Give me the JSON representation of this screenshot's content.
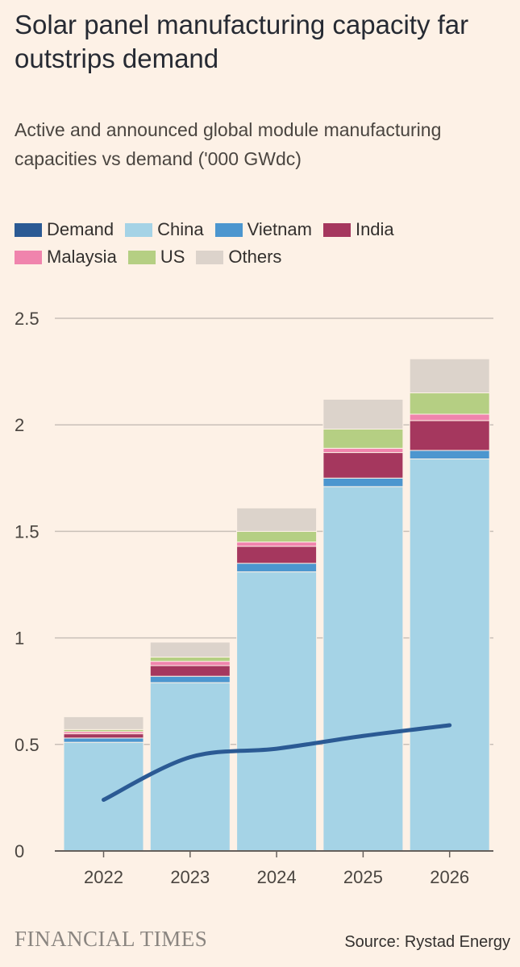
{
  "title": "Solar panel manufacturing capacity far outstrips demand",
  "subtitle": "Active and announced global module manufacturing capacities vs demand ('000 GWdc)",
  "legend": [
    {
      "name": "Demand",
      "color": "#2b5a94"
    },
    {
      "name": "China",
      "color": "#a5d3e6"
    },
    {
      "name": "Vietnam",
      "color": "#4c96cf"
    },
    {
      "name": "India",
      "color": "#a5375e"
    },
    {
      "name": "Malaysia",
      "color": "#f084ad"
    },
    {
      "name": "US",
      "color": "#b5cf83"
    },
    {
      "name": "Others",
      "color": "#dcd3cb"
    }
  ],
  "chart_data": {
    "type": "bar",
    "stacked": true,
    "title": "Solar panel manufacturing capacity far outstrips demand",
    "ylim": [
      0,
      2.5
    ],
    "yticks": [
      0,
      0.5,
      1,
      1.5,
      2,
      2.5
    ],
    "ytick_labels": [
      "0",
      "0.5",
      "1",
      "1.5",
      "2",
      "2.5"
    ],
    "categories": [
      "2022",
      "2023",
      "2024",
      "2025",
      "2026"
    ],
    "series": [
      {
        "name": "China",
        "color": "#a5d3e6",
        "values": [
          0.51,
          0.79,
          1.31,
          1.71,
          1.84
        ]
      },
      {
        "name": "Vietnam",
        "color": "#4c96cf",
        "values": [
          0.02,
          0.03,
          0.04,
          0.04,
          0.04
        ]
      },
      {
        "name": "India",
        "color": "#a5375e",
        "values": [
          0.02,
          0.05,
          0.08,
          0.12,
          0.14
        ]
      },
      {
        "name": "Malaysia",
        "color": "#f084ad",
        "values": [
          0.01,
          0.02,
          0.02,
          0.02,
          0.03
        ]
      },
      {
        "name": "US",
        "color": "#b5cf83",
        "values": [
          0.01,
          0.02,
          0.05,
          0.09,
          0.1
        ]
      },
      {
        "name": "Others",
        "color": "#dcd3cb",
        "values": [
          0.06,
          0.07,
          0.11,
          0.14,
          0.16
        ]
      }
    ],
    "line": {
      "name": "Demand",
      "color": "#2b5a94",
      "values": [
        0.24,
        0.44,
        0.48,
        0.54,
        0.59
      ]
    }
  },
  "footer": {
    "brand": "FINANCIAL TIMES",
    "source": "Source: Rystad Energy"
  }
}
